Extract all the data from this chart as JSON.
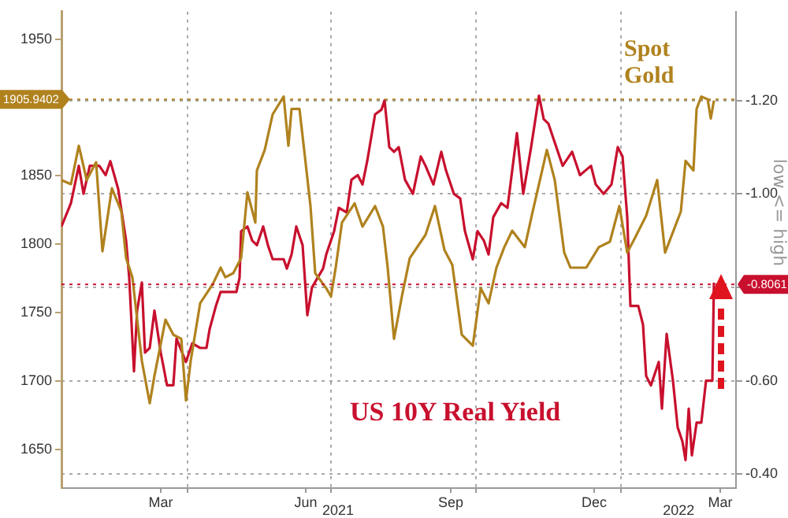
{
  "chart_data": {
    "type": "line",
    "xlim": [
      "2021-01-11",
      "2022-03-15"
    ],
    "xticks": [
      {
        "value": "2021-03-15",
        "label": "Mar"
      },
      {
        "value": "2021-04-01",
        "label": null
      },
      {
        "value": "2021-06-15",
        "label": "Jun"
      },
      {
        "value": "2021-07-01",
        "label": null
      },
      {
        "value": "2021-09-15",
        "label": "Sep"
      },
      {
        "value": "2021-10-01",
        "label": null
      },
      {
        "value": "2021-12-15",
        "label": "Dec"
      },
      {
        "value": "2022-01-01",
        "label": null
      },
      {
        "value": "2022-03-05",
        "label": "Mar"
      }
    ],
    "ylim": [
      1622,
      1970
    ],
    "yticks": [
      1650,
      1700,
      1750,
      1800,
      1850,
      1950
    ],
    "y2lim": [
      -0.37,
      -1.39
    ],
    "y2ticks": [
      {
        "value": -1.2,
        "label": "-1.20"
      },
      {
        "value": -1.0,
        "label": "-1.00"
      },
      {
        "value": -0.8,
        "label": null
      },
      {
        "value": -0.6,
        "label": "-0.60"
      },
      {
        "value": -0.4,
        "label": "-0.40"
      }
    ],
    "y2label": "low <= high",
    "grid": true,
    "legend": false,
    "line_style": "solid",
    "marker": "none",
    "ref_lines": [
      {
        "axis": "y",
        "value": 1905.9402,
        "label": "1905.9402",
        "color": "#b0821e"
      },
      {
        "axis": "y2",
        "value": -0.8061,
        "label": "-0.8061",
        "color": "#c8102e"
      }
    ],
    "annotations": [
      "2021",
      "2022",
      "Spot Gold",
      "US 10Y Real Yield"
    ],
    "series": [
      {
        "color": "#b0821e",
        "axis": "y",
        "x": [
          "2021-01-11",
          "2021-01-17",
          "2021-01-22",
          "2021-01-27",
          "2021-02-02",
          "2021-02-06",
          "2021-02-12",
          "2021-02-18",
          "2021-02-21",
          "2021-02-25",
          "2021-03-03",
          "2021-03-08",
          "2021-03-11",
          "2021-03-18",
          "2021-03-23",
          "2021-03-28",
          "2021-03-31",
          "2021-04-03",
          "2021-04-09",
          "2021-04-17",
          "2021-04-22",
          "2021-04-25",
          "2021-04-30",
          "2021-05-05",
          "2021-05-09",
          "2021-05-14",
          "2021-05-15",
          "2021-05-20",
          "2021-05-25",
          "2021-06-01",
          "2021-06-04",
          "2021-06-06",
          "2021-06-11",
          "2021-06-14",
          "2021-06-18",
          "2021-06-21",
          "2021-06-28",
          "2021-07-01",
          "2021-07-04",
          "2021-07-08",
          "2021-07-16",
          "2021-07-21",
          "2021-07-29",
          "2021-08-03",
          "2021-08-06",
          "2021-08-10",
          "2021-08-15",
          "2021-08-20",
          "2021-08-30",
          "2021-09-05",
          "2021-09-11",
          "2021-09-16",
          "2021-09-22",
          "2021-09-29",
          "2021-10-04",
          "2021-10-09",
          "2021-10-14",
          "2021-10-19",
          "2021-10-24",
          "2021-11-01",
          "2021-11-06",
          "2021-11-15",
          "2021-11-20",
          "2021-11-26",
          "2021-11-30",
          "2021-12-10",
          "2021-12-18",
          "2021-12-25",
          "2021-12-31",
          "2022-01-05",
          "2022-01-10",
          "2022-01-17",
          "2022-01-24",
          "2022-01-29",
          "2022-02-08",
          "2022-02-11",
          "2022-02-16",
          "2022-02-18",
          "2022-02-21",
          "2022-02-25",
          "2022-02-27",
          "2022-03-01"
        ],
        "values": [
          1847,
          1844,
          1872,
          1847,
          1860,
          1795,
          1841,
          1824,
          1790,
          1776,
          1715,
          1684,
          1704,
          1745,
          1734,
          1731,
          1686,
          1715,
          1757,
          1771,
          1783,
          1776,
          1779,
          1790,
          1838,
          1816,
          1854,
          1869,
          1895,
          1908,
          1872,
          1899,
          1899,
          1869,
          1828,
          1779,
          1768,
          1762,
          1783,
          1816,
          1830,
          1813,
          1828,
          1813,
          1783,
          1731,
          1762,
          1790,
          1807,
          1828,
          1796,
          1785,
          1734,
          1726,
          1768,
          1757,
          1783,
          1798,
          1810,
          1798,
          1824,
          1869,
          1847,
          1794,
          1783,
          1783,
          1798,
          1802,
          1828,
          1794,
          1805,
          1821,
          1847,
          1794,
          1824,
          1861,
          1854,
          1899,
          1908,
          1906,
          1892,
          1905
        ]
      },
      {
        "color": "#c8102e",
        "axis": "y2",
        "x": [
          "2021-01-11",
          "2021-01-17",
          "2021-01-22",
          "2021-01-25",
          "2021-01-29",
          "2021-02-04",
          "2021-02-08",
          "2021-02-11",
          "2021-02-16",
          "2021-02-21",
          "2021-02-23",
          "2021-02-26",
          "2021-02-28",
          "2021-03-03",
          "2021-03-05",
          "2021-03-08",
          "2021-03-11",
          "2021-03-15",
          "2021-03-19",
          "2021-03-23",
          "2021-03-25",
          "2021-03-31",
          "2021-04-04",
          "2021-04-09",
          "2021-04-13",
          "2021-04-15",
          "2021-04-19",
          "2021-04-22",
          "2021-05-02",
          "2021-05-04",
          "2021-05-05",
          "2021-05-09",
          "2021-05-12",
          "2021-05-15",
          "2021-05-19",
          "2021-05-22",
          "2021-05-25",
          "2021-06-01",
          "2021-06-03",
          "2021-06-06",
          "2021-06-09",
          "2021-06-13",
          "2021-06-16",
          "2021-06-19",
          "2021-06-26",
          "2021-06-28",
          "2021-07-03",
          "2021-07-06",
          "2021-07-11",
          "2021-07-14",
          "2021-07-18",
          "2021-07-21",
          "2021-07-24",
          "2021-07-29",
          "2021-08-02",
          "2021-08-04",
          "2021-08-07",
          "2021-08-10",
          "2021-08-13",
          "2021-08-17",
          "2021-08-22",
          "2021-08-27",
          "2021-08-30",
          "2021-09-04",
          "2021-09-09",
          "2021-09-12",
          "2021-09-17",
          "2021-09-21",
          "2021-09-24",
          "2021-09-29",
          "2021-10-02",
          "2021-10-06",
          "2021-10-09",
          "2021-10-12",
          "2021-10-17",
          "2021-10-21",
          "2021-10-27",
          "2021-10-31",
          "2021-11-05",
          "2021-11-10",
          "2021-11-13",
          "2021-11-16",
          "2021-11-20",
          "2021-11-25",
          "2021-12-01",
          "2021-12-06",
          "2021-12-13",
          "2021-12-16",
          "2021-12-21",
          "2021-12-26",
          "2021-12-30",
          "2022-01-02",
          "2022-01-05",
          "2022-01-07",
          "2022-01-12",
          "2022-01-15",
          "2022-01-17",
          "2022-01-20",
          "2022-01-25",
          "2022-01-27",
          "2022-01-30",
          "2022-02-03",
          "2022-02-06",
          "2022-02-09",
          "2022-02-11",
          "2022-02-13",
          "2022-02-15",
          "2022-02-18",
          "2022-02-21",
          "2022-02-24",
          "2022-02-28",
          "2022-03-01"
        ],
        "values": [
          -0.93,
          -0.98,
          -1.06,
          -1.0,
          -1.06,
          -1.06,
          -1.04,
          -1.07,
          -1.01,
          -0.9,
          -0.82,
          -0.62,
          -0.75,
          -0.81,
          -0.66,
          -0.67,
          -0.75,
          -0.66,
          -0.59,
          -0.59,
          -0.69,
          -0.64,
          -0.68,
          -0.67,
          -0.67,
          -0.71,
          -0.76,
          -0.79,
          -0.79,
          -0.82,
          -0.92,
          -0.93,
          -0.9,
          -0.89,
          -0.93,
          -0.89,
          -0.86,
          -0.86,
          -0.84,
          -0.87,
          -0.93,
          -0.89,
          -0.74,
          -0.8,
          -0.84,
          -0.87,
          -0.92,
          -0.97,
          -0.96,
          -1.03,
          -1.04,
          -1.02,
          -1.07,
          -1.17,
          -1.18,
          -1.2,
          -1.1,
          -1.09,
          -1.1,
          -1.03,
          -1.0,
          -1.08,
          -1.06,
          -1.02,
          -1.09,
          -1.05,
          -1.0,
          -0.99,
          -0.92,
          -0.86,
          -0.92,
          -0.9,
          -0.87,
          -0.95,
          -0.98,
          -0.97,
          -1.13,
          -1.0,
          -1.1,
          -1.21,
          -1.16,
          -1.15,
          -1.11,
          -1.06,
          -1.09,
          -1.04,
          -1.06,
          -1.02,
          -1.0,
          -1.02,
          -1.1,
          -1.08,
          -0.95,
          -0.76,
          -0.76,
          -0.72,
          -0.61,
          -0.59,
          -0.64,
          -0.54,
          -0.7,
          -0.6,
          -0.5,
          -0.47,
          -0.43,
          -0.54,
          -0.44,
          -0.51,
          -0.51,
          -0.6,
          -0.6,
          -0.81
        ]
      }
    ]
  }
}
